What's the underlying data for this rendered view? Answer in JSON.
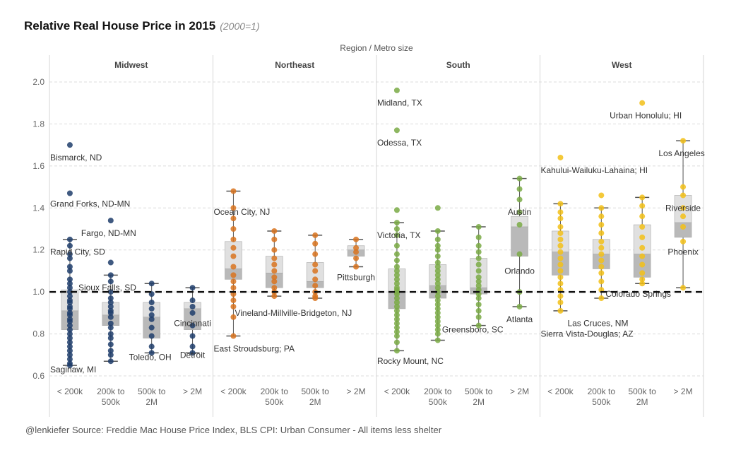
{
  "title": "Relative Real House Price in 2015",
  "subtitle": "(2000=1)",
  "footer": "@lenkiefer Source: Freddie Mac House Price Index,  BLS CPI: Urban Consumer - All items less shelter",
  "chart_data": {
    "type": "boxplot-dot",
    "header": "Region  /  Metro size",
    "ylim": [
      0.6,
      2.0
    ],
    "yticks": [
      "0.6",
      "0.8",
      "1.0",
      "1.2",
      "1.4",
      "1.6",
      "1.8",
      "2.0"
    ],
    "reference_line": 1.0,
    "grid": true,
    "panels": [
      {
        "region": "Midwest",
        "color": "#1f3d6b",
        "groups": [
          {
            "label": [
              "< 200k"
            ],
            "box": {
              "min": 0.65,
              "q1": 0.82,
              "median": 0.91,
              "q3": 1.01,
              "max": 1.25
            },
            "points": [
              1.7,
              1.47,
              1.25,
              1.22,
              1.18,
              1.16,
              1.12,
              1.1,
              1.06,
              1.04,
              1.02,
              1.0,
              0.98,
              0.96,
              0.95,
              0.93,
              0.92,
              0.9,
              0.89,
              0.87,
              0.86,
              0.84,
              0.82,
              0.8,
              0.78,
              0.76,
              0.74,
              0.72,
              0.7,
              0.68,
              0.66,
              0.65
            ]
          },
          {
            "label": [
              "200k to",
              "500k"
            ],
            "box": {
              "min": 0.67,
              "q1": 0.84,
              "median": 0.89,
              "q3": 0.95,
              "max": 1.08
            },
            "points": [
              1.34,
              1.14,
              1.08,
              1.05,
              1.0,
              0.97,
              0.95,
              0.93,
              0.91,
              0.9,
              0.88,
              0.85,
              0.83,
              0.8,
              0.78,
              0.75,
              0.72,
              0.7,
              0.67
            ]
          },
          {
            "label": [
              "500k to",
              "2M"
            ],
            "box": {
              "min": 0.71,
              "q1": 0.78,
              "median": 0.88,
              "q3": 0.95,
              "max": 1.04
            },
            "points": [
              1.04,
              0.99,
              0.95,
              0.92,
              0.89,
              0.87,
              0.83,
              0.79,
              0.74,
              0.71
            ]
          },
          {
            "label": [
              "> 2M"
            ],
            "box": {
              "min": 0.71,
              "q1": 0.82,
              "median": 0.92,
              "q3": 0.95,
              "max": 1.02
            },
            "points": [
              1.02,
              0.96,
              0.93,
              0.9,
              0.84,
              0.79,
              0.74,
              0.71
            ]
          }
        ],
        "annotations": [
          {
            "text": "Bismarck, ND",
            "group": 0,
            "value": 1.64,
            "align": "start",
            "dx": -28
          },
          {
            "text": "Grand Forks, ND-MN",
            "group": 0,
            "value": 1.42,
            "align": "start",
            "dx": -28
          },
          {
            "text": "Fargo, ND-MN",
            "group": 1,
            "value": 1.28,
            "align": "start",
            "dx": -42
          },
          {
            "text": "Rapid City, SD",
            "group": 0,
            "value": 1.19,
            "align": "start",
            "dx": -28
          },
          {
            "text": "Sioux Falls, SD",
            "group": 0,
            "value": 1.02,
            "align": "start",
            "dx": 12
          },
          {
            "text": "Cincinnati",
            "group": 3,
            "value": 0.85,
            "align": "middle",
            "dx": 0
          },
          {
            "text": "Toledo, OH",
            "group": 2,
            "value": 0.69,
            "align": "middle",
            "dx": -2
          },
          {
            "text": "Detroit",
            "group": 3,
            "value": 0.7,
            "align": "middle",
            "dx": 0
          },
          {
            "text": "Saginaw, MI",
            "group": 0,
            "value": 0.63,
            "align": "start",
            "dx": -28
          }
        ]
      },
      {
        "region": "Northeast",
        "color": "#d8731f",
        "groups": [
          {
            "label": [
              "< 200k"
            ],
            "box": {
              "min": 0.79,
              "q1": 1.06,
              "median": 1.11,
              "q3": 1.24,
              "max": 1.48
            },
            "points": [
              1.48,
              1.4,
              1.35,
              1.3,
              1.25,
              1.21,
              1.17,
              1.12,
              1.08,
              1.05,
              1.02,
              0.99,
              0.96,
              0.93,
              0.88,
              0.79
            ]
          },
          {
            "label": [
              "200k to",
              "500k"
            ],
            "box": {
              "min": 0.98,
              "q1": 1.02,
              "median": 1.09,
              "q3": 1.17,
              "max": 1.29
            },
            "points": [
              1.29,
              1.25,
              1.2,
              1.16,
              1.13,
              1.1,
              1.07,
              1.05,
              1.02,
              1.0,
              0.98
            ]
          },
          {
            "label": [
              "500k to",
              "2M"
            ],
            "box": {
              "min": 0.97,
              "q1": 1.02,
              "median": 1.05,
              "q3": 1.14,
              "max": 1.27
            },
            "points": [
              1.27,
              1.23,
              1.18,
              1.13,
              1.1,
              1.06,
              1.03,
              1.0,
              0.98,
              0.97
            ]
          },
          {
            "label": [
              "> 2M"
            ],
            "box": {
              "min": 1.12,
              "q1": 1.17,
              "median": 1.2,
              "q3": 1.22,
              "max": 1.25
            },
            "points": [
              1.25,
              1.21,
              1.19,
              1.16,
              1.12
            ]
          }
        ],
        "annotations": [
          {
            "text": "Ocean City, NJ",
            "group": 0,
            "value": 1.38,
            "align": "start",
            "dx": -28
          },
          {
            "text": "Pittsburgh",
            "group": 3,
            "value": 1.07,
            "align": "middle",
            "dx": 0
          },
          {
            "text": "Vineland-Millville-Bridgeton, NJ",
            "group": 0,
            "value": 0.9,
            "align": "start",
            "dx": 2
          },
          {
            "text": "East Stroudsburg; PA",
            "group": 0,
            "value": 0.73,
            "align": "start",
            "dx": -28
          }
        ]
      },
      {
        "region": "South",
        "color": "#7aaa45",
        "groups": [
          {
            "label": [
              "< 200k"
            ],
            "box": {
              "min": 0.72,
              "q1": 0.92,
              "median": 1.0,
              "q3": 1.11,
              "max": 1.33
            },
            "points": [
              1.96,
              1.77,
              1.39,
              1.33,
              1.3,
              1.27,
              1.22,
              1.18,
              1.15,
              1.12,
              1.1,
              1.08,
              1.06,
              1.04,
              1.02,
              1.01,
              1.0,
              0.99,
              0.97,
              0.95,
              0.93,
              0.91,
              0.89,
              0.87,
              0.85,
              0.83,
              0.81,
              0.79,
              0.76,
              0.72
            ]
          },
          {
            "label": [
              "200k to",
              "500k"
            ],
            "box": {
              "min": 0.77,
              "q1": 0.97,
              "median": 1.03,
              "q3": 1.13,
              "max": 1.29
            },
            "points": [
              1.4,
              1.29,
              1.25,
              1.22,
              1.2,
              1.17,
              1.14,
              1.12,
              1.1,
              1.08,
              1.06,
              1.04,
              1.02,
              1.0,
              0.98,
              0.96,
              0.94,
              0.92,
              0.9,
              0.88,
              0.86,
              0.84,
              0.82,
              0.8,
              0.77
            ]
          },
          {
            "label": [
              "500k to",
              "2M"
            ],
            "box": {
              "min": 0.84,
              "q1": 0.99,
              "median": 1.02,
              "q3": 1.16,
              "max": 1.31
            },
            "points": [
              1.31,
              1.26,
              1.22,
              1.19,
              1.16,
              1.13,
              1.1,
              1.07,
              1.05,
              1.03,
              1.01,
              0.99,
              0.97,
              0.94,
              0.91,
              0.88,
              0.84
            ]
          },
          {
            "label": [
              "> 2M"
            ],
            "box": {
              "min": 0.93,
              "q1": 1.17,
              "median": 1.31,
              "q3": 1.36,
              "max": 1.54
            },
            "points": [
              1.54,
              1.49,
              1.44,
              1.38,
              1.32,
              1.18,
              1.0,
              0.93
            ]
          }
        ],
        "annotations": [
          {
            "text": "Midland, TX",
            "group": 0,
            "value": 1.9,
            "align": "start",
            "dx": -28
          },
          {
            "text": "Odessa, TX",
            "group": 0,
            "value": 1.71,
            "align": "start",
            "dx": -28
          },
          {
            "text": "Austin",
            "group": 3,
            "value": 1.38,
            "align": "middle",
            "dx": 0
          },
          {
            "text": "Victoria, TX",
            "group": 0,
            "value": 1.27,
            "align": "start",
            "dx": -28
          },
          {
            "text": "Orlando",
            "group": 3,
            "value": 1.1,
            "align": "middle",
            "dx": 0
          },
          {
            "text": "Atlanta",
            "group": 3,
            "value": 0.87,
            "align": "middle",
            "dx": 0
          },
          {
            "text": "Greensboro, SC",
            "group": 1,
            "value": 0.82,
            "align": "start",
            "dx": 6
          },
          {
            "text": "Rocky Mount, NC",
            "group": 0,
            "value": 0.67,
            "align": "start",
            "dx": -28
          }
        ]
      },
      {
        "region": "West",
        "color": "#f2bf17",
        "groups": [
          {
            "label": [
              "< 200k"
            ],
            "box": {
              "min": 0.91,
              "q1": 1.08,
              "median": 1.19,
              "q3": 1.29,
              "max": 1.42
            },
            "points": [
              1.64,
              1.42,
              1.38,
              1.35,
              1.31,
              1.28,
              1.25,
              1.22,
              1.19,
              1.16,
              1.13,
              1.1,
              1.07,
              1.04,
              1.01,
              0.98,
              0.95,
              0.91
            ]
          },
          {
            "label": [
              "200k to",
              "500k"
            ],
            "box": {
              "min": 0.97,
              "q1": 1.11,
              "median": 1.18,
              "q3": 1.25,
              "max": 1.4
            },
            "points": [
              1.46,
              1.4,
              1.36,
              1.32,
              1.28,
              1.24,
              1.21,
              1.18,
              1.15,
              1.12,
              1.09,
              1.05,
              1.01,
              0.97
            ]
          },
          {
            "label": [
              "500k to",
              "2M"
            ],
            "box": {
              "min": 1.04,
              "q1": 1.07,
              "median": 1.18,
              "q3": 1.32,
              "max": 1.45
            },
            "points": [
              1.9,
              1.45,
              1.41,
              1.36,
              1.31,
              1.26,
              1.21,
              1.17,
              1.13,
              1.09,
              1.06,
              1.04
            ]
          },
          {
            "label": [
              "> 2M"
            ],
            "box": {
              "min": 1.02,
              "q1": 1.26,
              "median": 1.33,
              "q3": 1.46,
              "max": 1.72
            },
            "points": [
              1.72,
              1.5,
              1.46,
              1.4,
              1.36,
              1.31,
              1.24,
              1.02
            ]
          }
        ],
        "annotations": [
          {
            "text": "Urban Honolulu; HI",
            "group": 2,
            "value": 1.84,
            "align": "end",
            "dx": 56
          },
          {
            "text": "Kahului-Wailuku-Lahaina; HI",
            "group": 0,
            "value": 1.58,
            "align": "start",
            "dx": -28
          },
          {
            "text": "Los Angeles",
            "group": 3,
            "value": 1.66,
            "align": "middle",
            "dx": -2
          },
          {
            "text": "Riverside",
            "group": 3,
            "value": 1.4,
            "align": "middle",
            "dx": 0
          },
          {
            "text": "Phoenix",
            "group": 3,
            "value": 1.19,
            "align": "middle",
            "dx": 0
          },
          {
            "text": "Colorado Springs",
            "group": 1,
            "value": 0.99,
            "align": "start",
            "dx": 6
          },
          {
            "text": "Las Cruces, NM",
            "group": 0,
            "value": 0.85,
            "align": "start",
            "dx": 10
          },
          {
            "text": "Sierra Vista-Douglas; AZ",
            "group": 0,
            "value": 0.8,
            "align": "start",
            "dx": -28
          }
        ]
      }
    ]
  }
}
